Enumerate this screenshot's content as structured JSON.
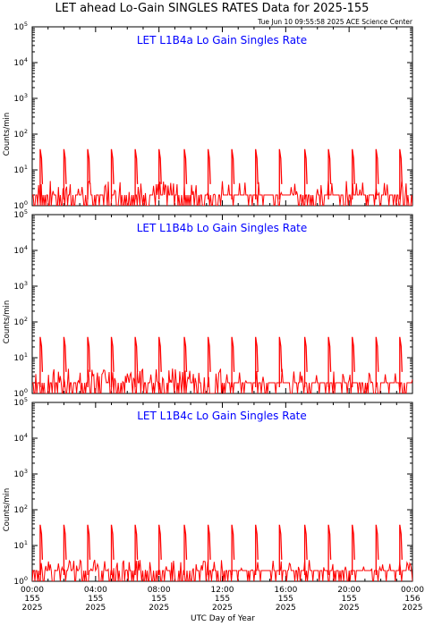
{
  "title": "LET ahead Lo-Gain SINGLES RATES Data for 2025-155",
  "timestamp": "Tue Jun 10 09:55:58 2025 ACE Science Center",
  "xlabel": "UTC Day of Year",
  "ylabel": "Counts/min",
  "colors": {
    "data": "#ff0000",
    "panel_title": "#0000ff",
    "axes": "#000000"
  },
  "x_ticks": [
    {
      "time": "00:00",
      "doy": "155",
      "year": "2025"
    },
    {
      "time": "04:00",
      "doy": "155",
      "year": "2025"
    },
    {
      "time": "08:00",
      "doy": "155",
      "year": "2025"
    },
    {
      "time": "12:00",
      "doy": "155",
      "year": "2025"
    },
    {
      "time": "16:00",
      "doy": "155",
      "year": "2025"
    },
    {
      "time": "20:00",
      "doy": "155",
      "year": "2025"
    },
    {
      "time": "00:00",
      "doy": "156",
      "year": "2025"
    }
  ],
  "chart_data": [
    {
      "type": "line",
      "title": "LET L1B4a Lo Gain Singles Rate",
      "ylabel": "Counts/min",
      "xlabel": "UTC Day of Year",
      "yscale": "log",
      "ylim": [
        1,
        100000
      ],
      "xlim_hours": [
        0,
        24
      ],
      "y_ticks": [
        "10^0",
        "10^1",
        "10^2",
        "10^3",
        "10^4",
        "10^5"
      ],
      "spike_hours": [
        0.5,
        2.0,
        3.5,
        5.0,
        6.5,
        8.0,
        9.6,
        11.1,
        12.6,
        14.1,
        15.6,
        17.2,
        18.7,
        20.2,
        21.7,
        23.2
      ],
      "spike_peak": 38,
      "baseline": {
        "min": 1,
        "max": 5,
        "typical": 2
      }
    },
    {
      "type": "line",
      "title": "LET L1B4b Lo Gain Singles Rate",
      "ylabel": "Counts/min",
      "xlabel": "UTC Day of Year",
      "yscale": "log",
      "ylim": [
        1,
        100000
      ],
      "xlim_hours": [
        0,
        24
      ],
      "y_ticks": [
        "10^0",
        "10^1",
        "10^2",
        "10^3",
        "10^4",
        "10^5"
      ],
      "spike_hours": [
        0.5,
        2.0,
        3.5,
        5.0,
        6.5,
        8.0,
        9.6,
        11.1,
        12.6,
        14.1,
        15.6,
        17.2,
        18.7,
        20.2,
        21.7,
        23.2
      ],
      "spike_peak": 38,
      "baseline": {
        "min": 1,
        "max": 5,
        "typical": 2
      }
    },
    {
      "type": "line",
      "title": "LET L1B4c Lo Gain Singles Rate",
      "ylabel": "Counts/min",
      "xlabel": "UTC Day of Year",
      "yscale": "log",
      "ylim": [
        1,
        100000
      ],
      "xlim_hours": [
        0,
        24
      ],
      "y_ticks": [
        "10^0",
        "10^1",
        "10^2",
        "10^3",
        "10^4",
        "10^5"
      ],
      "spike_hours": [
        0.5,
        2.0,
        3.5,
        5.0,
        6.5,
        8.0,
        9.6,
        11.1,
        12.6,
        14.1,
        15.6,
        17.2,
        18.7,
        20.2,
        21.7,
        23.2
      ],
      "spike_peak": 38,
      "baseline": {
        "min": 1,
        "max": 4,
        "typical": 2
      }
    }
  ]
}
